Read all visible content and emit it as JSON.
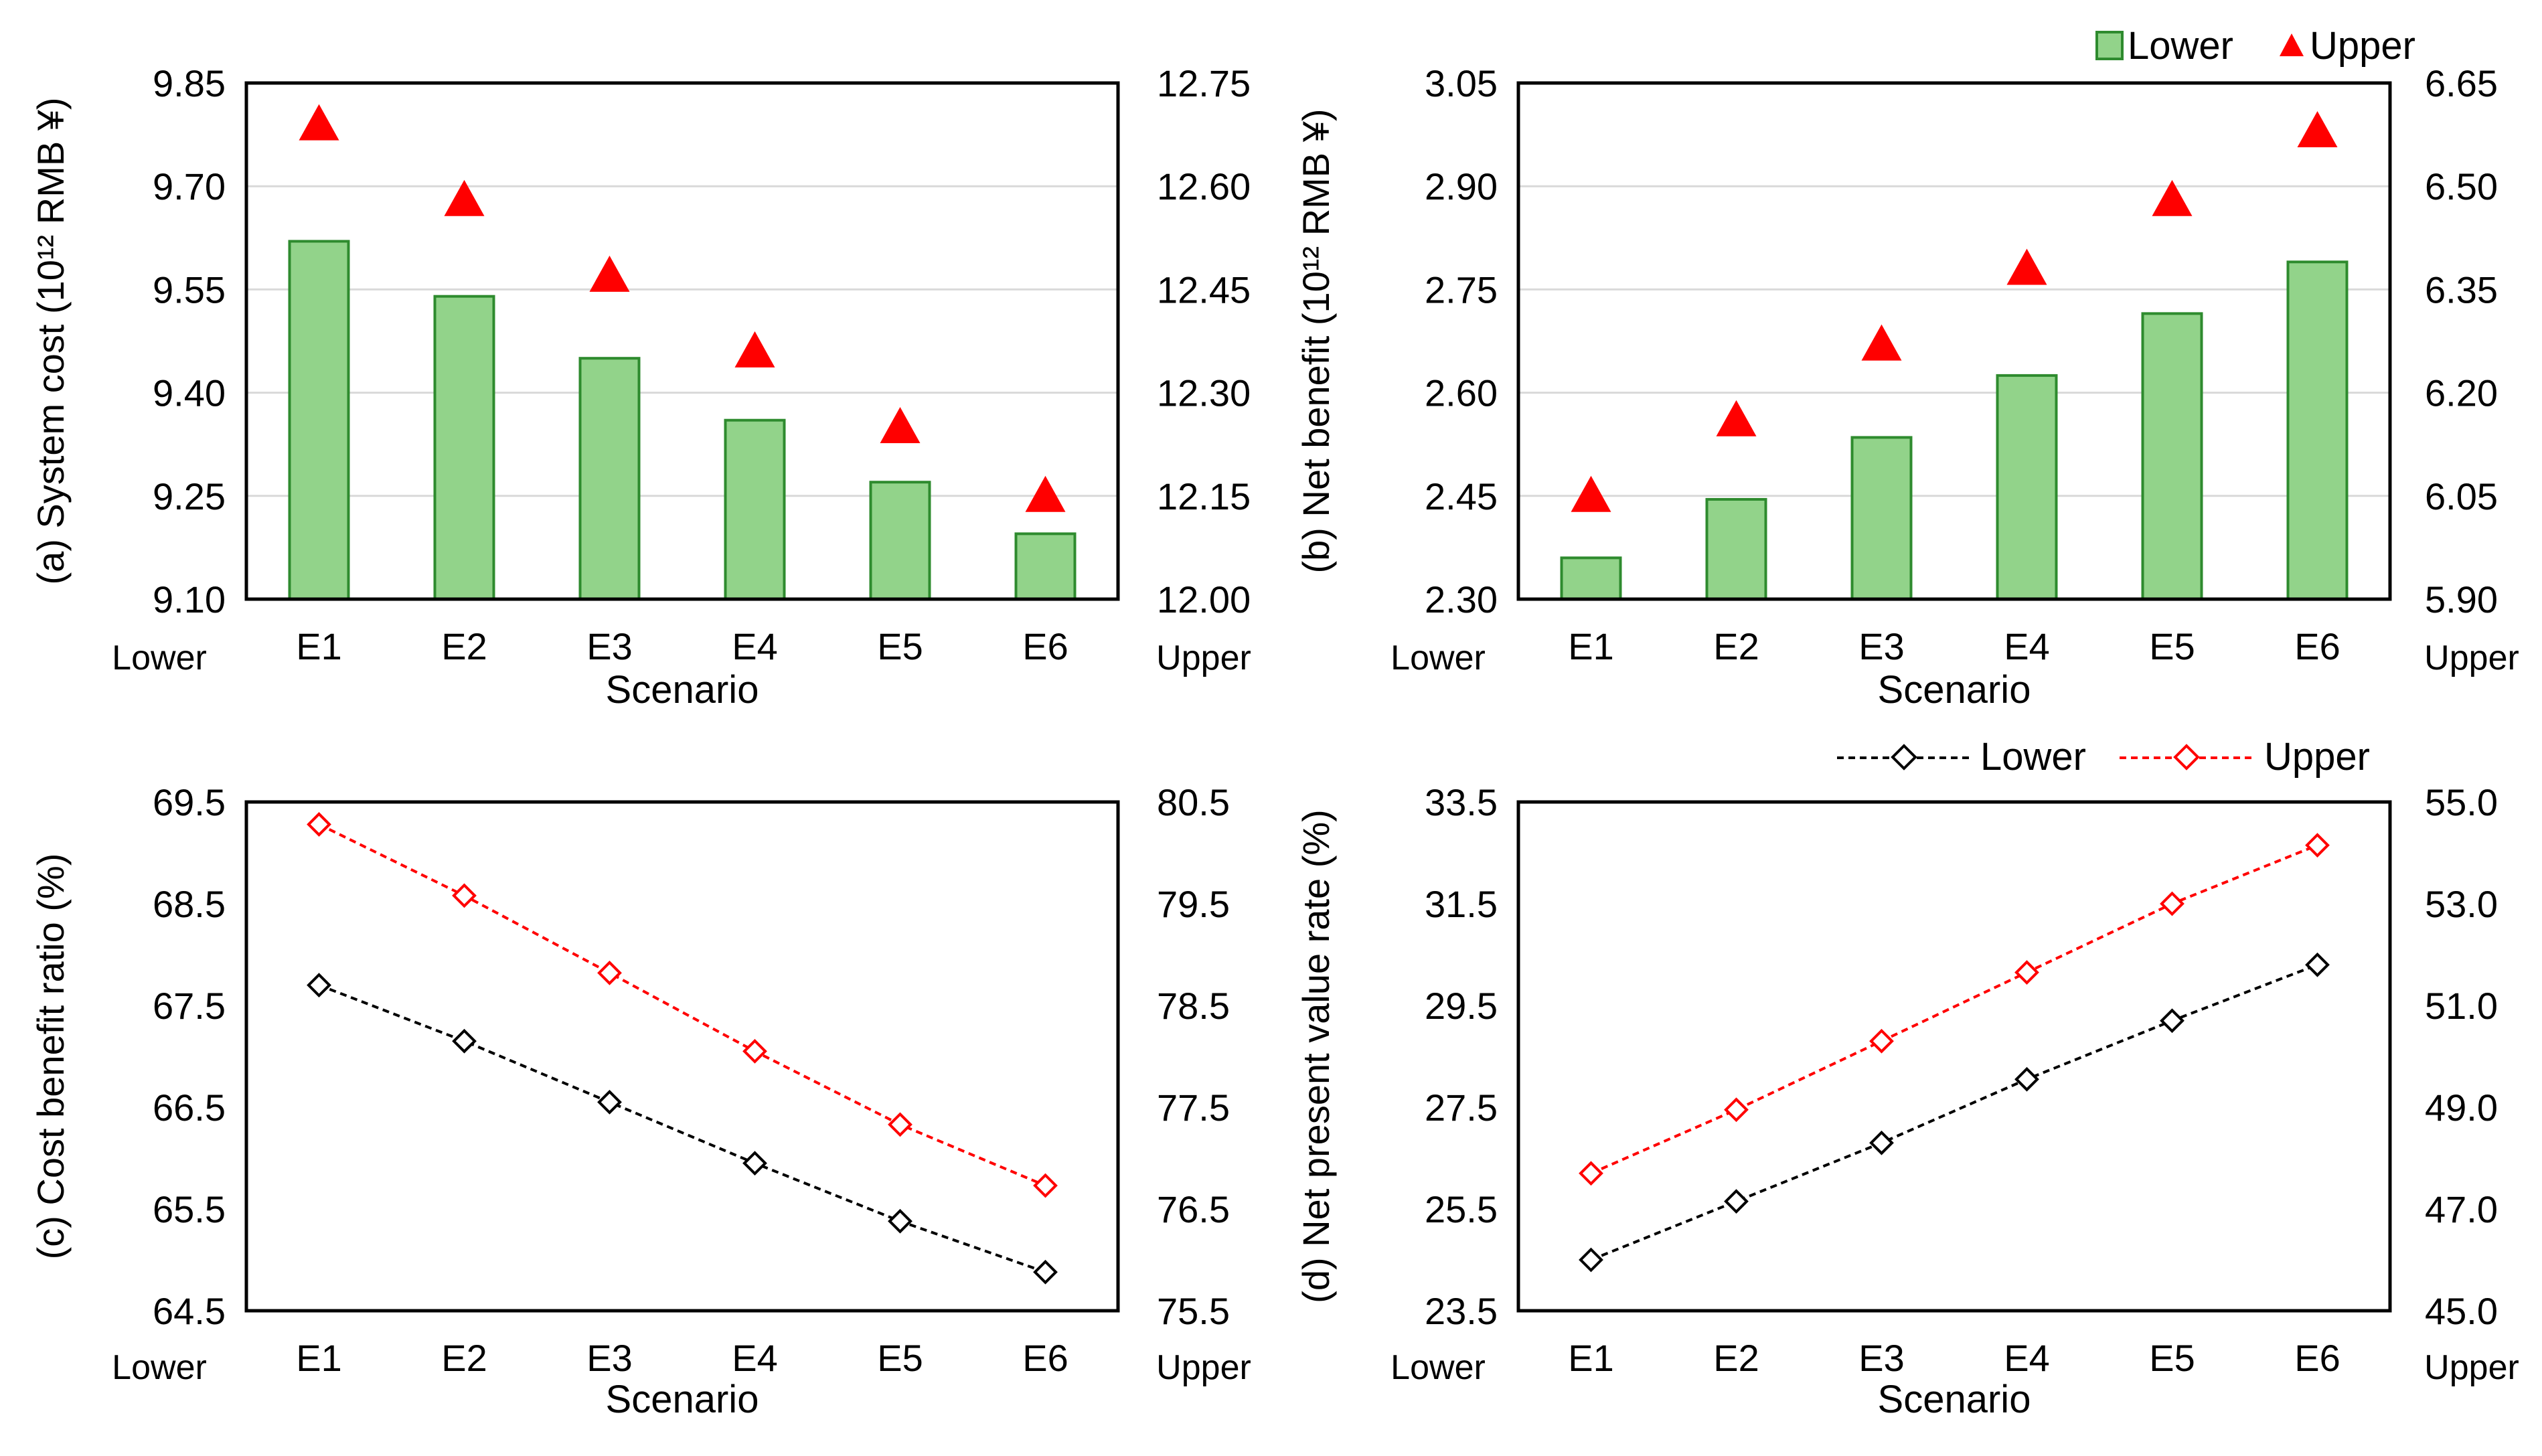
{
  "colors": {
    "bar_fill": "#92d38a",
    "bar_stroke": "#2e8b2e",
    "triangle": "#ff0000",
    "lower_line": "#000000",
    "upper_line": "#ff0000",
    "grid": "#d9d9d9"
  },
  "legends": {
    "bars": {
      "lower": "Lower",
      "upper": "Upper"
    },
    "lines": {
      "lower": "Lower",
      "upper": "Upper"
    }
  },
  "chart_data": [
    {
      "id": "a",
      "type": "bar",
      "ylabel": "(a) System cost (10¹² RMB ¥)",
      "xlabel": "Scenario",
      "corner_left": "Lower",
      "corner_right": "Upper",
      "categories": [
        "E1",
        "E2",
        "E3",
        "E4",
        "E5",
        "E6"
      ],
      "left_axis": {
        "range": [
          9.1,
          9.85
        ],
        "ticks": [
          "9.85",
          "9.70",
          "9.55",
          "9.40",
          "9.25",
          "9.10"
        ]
      },
      "right_axis": {
        "range": [
          12.0,
          12.75
        ],
        "ticks": [
          "12.75",
          "12.60",
          "12.45",
          "12.30",
          "12.15",
          "12.00"
        ]
      },
      "series": [
        {
          "name": "Lower",
          "axis": "left",
          "mark": "bar",
          "values": [
            9.62,
            9.54,
            9.45,
            9.36,
            9.27,
            9.195
          ]
        },
        {
          "name": "Upper",
          "axis": "right",
          "mark": "triangle",
          "values": [
            12.69,
            12.58,
            12.47,
            12.36,
            12.25,
            12.15
          ]
        }
      ]
    },
    {
      "id": "b",
      "type": "bar",
      "ylabel": "(b) Net benefit (10¹² RMB ¥)",
      "xlabel": "Scenario",
      "corner_left": "Lower",
      "corner_right": "Upper",
      "categories": [
        "E1",
        "E2",
        "E3",
        "E4",
        "E5",
        "E6"
      ],
      "left_axis": {
        "range": [
          2.3,
          3.05
        ],
        "ticks": [
          "3.05",
          "2.90",
          "2.75",
          "2.60",
          "2.45",
          "2.30"
        ]
      },
      "right_axis": {
        "range": [
          5.9,
          6.65
        ],
        "ticks": [
          "6.65",
          "6.50",
          "6.35",
          "6.20",
          "6.05",
          "5.90"
        ]
      },
      "series": [
        {
          "name": "Lower",
          "axis": "left",
          "mark": "bar",
          "values": [
            2.36,
            2.445,
            2.535,
            2.625,
            2.715,
            2.79
          ]
        },
        {
          "name": "Upper",
          "axis": "right",
          "mark": "triangle",
          "values": [
            6.05,
            6.16,
            6.27,
            6.38,
            6.48,
            6.58
          ]
        }
      ]
    },
    {
      "id": "c",
      "type": "line",
      "ylabel": "(c) Cost benefit ratio (%)",
      "xlabel": "Scenario",
      "corner_left": "Lower",
      "corner_right": "Upper",
      "categories": [
        "E1",
        "E2",
        "E3",
        "E4",
        "E5",
        "E6"
      ],
      "left_axis": {
        "range": [
          64.5,
          69.5
        ],
        "ticks": [
          "69.5",
          "68.5",
          "67.5",
          "66.5",
          "65.5",
          "64.5"
        ]
      },
      "right_axis": {
        "range": [
          75.5,
          80.5
        ],
        "ticks": [
          "80.5",
          "79.5",
          "78.5",
          "77.5",
          "76.5",
          "75.5"
        ]
      },
      "series": [
        {
          "name": "Lower",
          "axis": "left",
          "mark": "diamond-line",
          "values": [
            67.7,
            67.15,
            66.55,
            65.95,
            65.38,
            64.88
          ]
        },
        {
          "name": "Upper",
          "axis": "right",
          "mark": "diamond-line",
          "values": [
            80.28,
            79.58,
            78.82,
            78.05,
            77.33,
            76.73
          ]
        }
      ]
    },
    {
      "id": "d",
      "type": "line",
      "ylabel": "(d) Net present value rate (%)",
      "xlabel": "Scenario",
      "corner_left": "Lower",
      "corner_right": "Upper",
      "categories": [
        "E1",
        "E2",
        "E3",
        "E4",
        "E5",
        "E6"
      ],
      "left_axis": {
        "range": [
          23.5,
          33.5
        ],
        "ticks": [
          "33.5",
          "31.5",
          "29.5",
          "27.5",
          "25.5",
          "23.5"
        ]
      },
      "right_axis": {
        "range": [
          45.0,
          55.0
        ],
        "ticks": [
          "55.0",
          "53.0",
          "51.0",
          "49.0",
          "47.0",
          "45.0"
        ]
      },
      "series": [
        {
          "name": "Lower",
          "axis": "left",
          "mark": "diamond-line",
          "values": [
            24.5,
            25.65,
            26.8,
            28.05,
            29.2,
            30.3
          ]
        },
        {
          "name": "Upper",
          "axis": "right",
          "mark": "diamond-line",
          "values": [
            47.7,
            48.95,
            50.3,
            51.65,
            53.0,
            54.15
          ]
        }
      ]
    }
  ]
}
